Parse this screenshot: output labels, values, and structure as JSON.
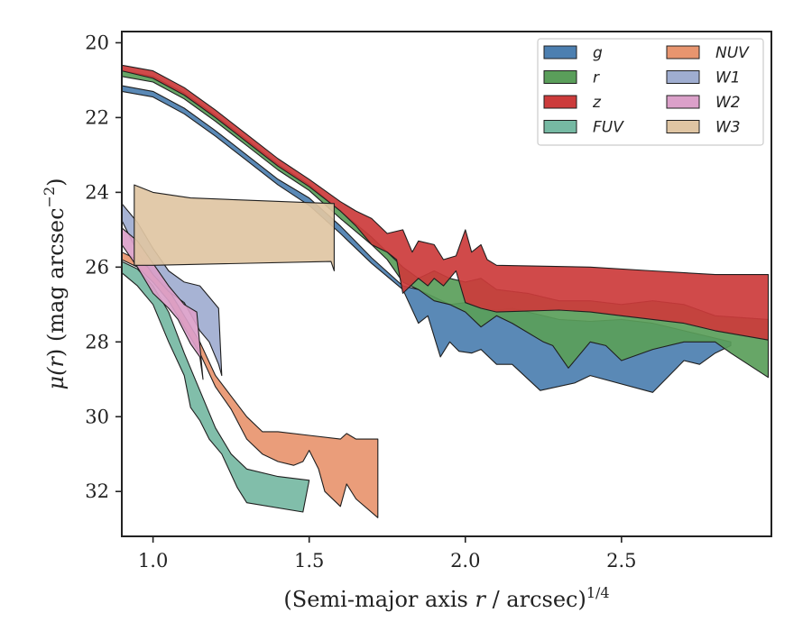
{
  "chart_data": {
    "type": "area",
    "xlabel": "(Semi-major axis r / arcsec)^1/4",
    "xlabel_parts": {
      "pre": "(Semi-major axis ",
      "italic": "r",
      "mid": " / arcsec)",
      "sup": "1/4"
    },
    "ylabel": "μ(r) (mag arcsec^−2)",
    "ylabel_parts": {
      "mu": "μ(",
      "r": "r",
      "close": ")",
      "rest": " (mag arcsec",
      "sup": "−2",
      "end": ")"
    },
    "xlim": [
      0.9,
      2.98
    ],
    "ylim": [
      33.2,
      19.7
    ],
    "y_inverted": true,
    "xticks": [
      1.0,
      1.5,
      2.0,
      2.5
    ],
    "xtick_labels": [
      "1.0",
      "1.5",
      "2.0",
      "2.5"
    ],
    "yticks": [
      20,
      22,
      24,
      26,
      28,
      30,
      32
    ],
    "ytick_labels": [
      "20",
      "22",
      "24",
      "26",
      "28",
      "30",
      "32"
    ],
    "grid": false,
    "legend_position": "top-right",
    "series": [
      {
        "name": "g",
        "color": "#4c7fb0",
        "upper": [
          [
            0.9,
            21.15
          ],
          [
            1.0,
            21.3
          ],
          [
            1.1,
            21.75
          ],
          [
            1.2,
            22.35
          ],
          [
            1.3,
            23.0
          ],
          [
            1.4,
            23.65
          ],
          [
            1.5,
            24.15
          ],
          [
            1.6,
            24.9
          ],
          [
            1.7,
            25.75
          ],
          [
            1.8,
            26.5
          ],
          [
            1.85,
            26.6
          ],
          [
            1.9,
            26.8
          ],
          [
            1.95,
            27.0
          ],
          [
            2.0,
            26.95
          ],
          [
            2.05,
            27.1
          ],
          [
            2.1,
            27.15
          ],
          [
            2.15,
            27.1
          ],
          [
            2.2,
            27.2
          ],
          [
            2.3,
            27.4
          ],
          [
            2.4,
            27.45
          ],
          [
            2.5,
            27.4
          ],
          [
            2.6,
            27.5
          ],
          [
            2.7,
            27.7
          ],
          [
            2.8,
            27.9
          ],
          [
            2.85,
            28.0
          ]
        ],
        "lower": [
          [
            2.85,
            28.1
          ],
          [
            2.8,
            28.3
          ],
          [
            2.75,
            28.6
          ],
          [
            2.7,
            28.5
          ],
          [
            2.6,
            29.35
          ],
          [
            2.4,
            28.9
          ],
          [
            2.35,
            29.1
          ],
          [
            2.24,
            29.3
          ],
          [
            2.15,
            28.6
          ],
          [
            2.1,
            28.6
          ],
          [
            2.05,
            28.2
          ],
          [
            2.02,
            28.3
          ],
          [
            1.98,
            28.25
          ],
          [
            1.95,
            28.0
          ],
          [
            1.92,
            28.4
          ],
          [
            1.88,
            27.3
          ],
          [
            1.85,
            27.5
          ],
          [
            1.8,
            26.6
          ],
          [
            1.7,
            25.9
          ],
          [
            1.6,
            25.1
          ],
          [
            1.5,
            24.35
          ],
          [
            1.4,
            23.8
          ],
          [
            1.3,
            23.15
          ],
          [
            1.2,
            22.5
          ],
          [
            1.1,
            21.9
          ],
          [
            1.0,
            21.45
          ],
          [
            0.9,
            21.3
          ]
        ]
      },
      {
        "name": "r",
        "color": "#5a9e5a",
        "upper": [
          [
            0.9,
            20.75
          ],
          [
            1.0,
            20.9
          ],
          [
            1.1,
            21.35
          ],
          [
            1.2,
            21.95
          ],
          [
            1.3,
            22.6
          ],
          [
            1.4,
            23.25
          ],
          [
            1.5,
            23.8
          ],
          [
            1.6,
            24.5
          ],
          [
            1.7,
            25.2
          ],
          [
            1.75,
            25.6
          ],
          [
            1.8,
            26.0
          ],
          [
            1.85,
            26.3
          ],
          [
            1.9,
            26.1
          ],
          [
            1.95,
            26.3
          ],
          [
            2.0,
            26.4
          ],
          [
            2.05,
            26.3
          ],
          [
            2.1,
            26.6
          ],
          [
            2.2,
            26.7
          ],
          [
            2.3,
            26.9
          ],
          [
            2.4,
            26.9
          ],
          [
            2.5,
            27.0
          ],
          [
            2.6,
            26.9
          ],
          [
            2.7,
            27.0
          ],
          [
            2.8,
            27.3
          ],
          [
            2.97,
            27.4
          ]
        ],
        "lower": [
          [
            2.97,
            28.95
          ],
          [
            2.85,
            28.3
          ],
          [
            2.8,
            28.0
          ],
          [
            2.7,
            28.0
          ],
          [
            2.6,
            28.2
          ],
          [
            2.5,
            28.5
          ],
          [
            2.45,
            28.1
          ],
          [
            2.4,
            28.0
          ],
          [
            2.33,
            28.7
          ],
          [
            2.28,
            28.1
          ],
          [
            2.25,
            28.0
          ],
          [
            2.15,
            27.5
          ],
          [
            2.1,
            27.3
          ],
          [
            2.05,
            27.6
          ],
          [
            2.0,
            27.2
          ],
          [
            1.95,
            27.0
          ],
          [
            1.9,
            26.9
          ],
          [
            1.85,
            26.6
          ],
          [
            1.8,
            26.4
          ],
          [
            1.75,
            25.8
          ],
          [
            1.7,
            25.4
          ],
          [
            1.6,
            24.7
          ],
          [
            1.5,
            23.95
          ],
          [
            1.4,
            23.4
          ],
          [
            1.3,
            22.75
          ],
          [
            1.2,
            22.1
          ],
          [
            1.1,
            21.5
          ],
          [
            1.0,
            21.05
          ],
          [
            0.9,
            20.9
          ]
        ]
      },
      {
        "name": "z",
        "color": "#cc3b3b",
        "upper": [
          [
            0.9,
            20.6
          ],
          [
            1.0,
            20.75
          ],
          [
            1.1,
            21.2
          ],
          [
            1.2,
            21.8
          ],
          [
            1.3,
            22.45
          ],
          [
            1.4,
            23.1
          ],
          [
            1.5,
            23.65
          ],
          [
            1.6,
            24.25
          ],
          [
            1.65,
            24.5
          ],
          [
            1.7,
            24.7
          ],
          [
            1.75,
            25.1
          ],
          [
            1.8,
            25.0
          ],
          [
            1.83,
            25.6
          ],
          [
            1.85,
            25.3
          ],
          [
            1.9,
            25.4
          ],
          [
            1.93,
            25.8
          ],
          [
            1.97,
            25.7
          ],
          [
            2.0,
            25.0
          ],
          [
            2.02,
            25.6
          ],
          [
            2.05,
            25.4
          ],
          [
            2.07,
            25.8
          ],
          [
            2.1,
            25.95
          ],
          [
            2.4,
            26.0
          ],
          [
            2.6,
            26.1
          ],
          [
            2.8,
            26.2
          ],
          [
            2.97,
            26.2
          ]
        ],
        "lower": [
          [
            2.97,
            27.95
          ],
          [
            2.8,
            27.7
          ],
          [
            2.7,
            27.5
          ],
          [
            2.6,
            27.4
          ],
          [
            2.5,
            27.3
          ],
          [
            2.4,
            27.2
          ],
          [
            2.3,
            27.15
          ],
          [
            2.1,
            27.2
          ],
          [
            2.05,
            27.1
          ],
          [
            2.0,
            26.95
          ],
          [
            1.97,
            26.1
          ],
          [
            1.93,
            26.5
          ],
          [
            1.9,
            26.3
          ],
          [
            1.88,
            26.5
          ],
          [
            1.85,
            26.3
          ],
          [
            1.8,
            26.7
          ],
          [
            1.78,
            25.8
          ],
          [
            1.75,
            25.6
          ],
          [
            1.7,
            25.4
          ],
          [
            1.65,
            24.9
          ],
          [
            1.6,
            24.5
          ],
          [
            1.5,
            23.85
          ],
          [
            1.4,
            23.3
          ],
          [
            1.3,
            22.65
          ],
          [
            1.2,
            22.0
          ],
          [
            1.1,
            21.4
          ],
          [
            1.0,
            20.95
          ],
          [
            0.9,
            20.75
          ]
        ]
      },
      {
        "name": "FUV",
        "color": "#76b9a3",
        "upper": [
          [
            0.9,
            25.85
          ],
          [
            0.95,
            26.05
          ],
          [
            1.0,
            26.5
          ],
          [
            1.05,
            27.2
          ],
          [
            1.1,
            28.3
          ],
          [
            1.15,
            29.3
          ],
          [
            1.2,
            30.3
          ],
          [
            1.25,
            31.0
          ],
          [
            1.3,
            31.4
          ],
          [
            1.4,
            31.6
          ],
          [
            1.5,
            31.7
          ]
        ],
        "lower": [
          [
            1.48,
            32.55
          ],
          [
            1.3,
            32.3
          ],
          [
            1.27,
            31.9
          ],
          [
            1.22,
            31.0
          ],
          [
            1.18,
            30.6
          ],
          [
            1.15,
            30.1
          ],
          [
            1.12,
            29.75
          ],
          [
            1.1,
            28.9
          ],
          [
            1.05,
            28.0
          ],
          [
            1.0,
            27.0
          ],
          [
            0.95,
            26.5
          ],
          [
            0.9,
            26.15
          ]
        ]
      },
      {
        "name": "NUV",
        "color": "#e8956f",
        "upper": [
          [
            0.9,
            25.6
          ],
          [
            0.95,
            25.8
          ],
          [
            1.0,
            26.1
          ],
          [
            1.05,
            26.6
          ],
          [
            1.1,
            27.3
          ],
          [
            1.15,
            28.0
          ],
          [
            1.2,
            28.9
          ],
          [
            1.3,
            30.0
          ],
          [
            1.35,
            30.4
          ],
          [
            1.4,
            30.4
          ],
          [
            1.5,
            30.5
          ],
          [
            1.6,
            30.6
          ],
          [
            1.62,
            30.45
          ],
          [
            1.65,
            30.6
          ],
          [
            1.72,
            30.6
          ]
        ],
        "lower": [
          [
            1.72,
            32.7
          ],
          [
            1.65,
            32.2
          ],
          [
            1.62,
            31.8
          ],
          [
            1.6,
            32.4
          ],
          [
            1.55,
            32.0
          ],
          [
            1.53,
            31.4
          ],
          [
            1.5,
            30.9
          ],
          [
            1.48,
            31.2
          ],
          [
            1.45,
            31.3
          ],
          [
            1.4,
            31.2
          ],
          [
            1.35,
            31.0
          ],
          [
            1.3,
            30.6
          ],
          [
            1.25,
            29.8
          ],
          [
            1.2,
            29.2
          ],
          [
            1.15,
            28.3
          ],
          [
            1.1,
            27.6
          ],
          [
            1.05,
            26.9
          ],
          [
            1.0,
            26.4
          ],
          [
            0.95,
            26.0
          ],
          [
            0.9,
            25.8
          ]
        ]
      },
      {
        "name": "W1",
        "color": "#9fadd0",
        "upper": [
          [
            0.9,
            24.3
          ],
          [
            0.95,
            24.8
          ],
          [
            1.0,
            25.5
          ],
          [
            1.05,
            26.1
          ],
          [
            1.1,
            26.4
          ],
          [
            1.15,
            26.5
          ],
          [
            1.18,
            26.8
          ],
          [
            1.21,
            27.1
          ],
          [
            1.22,
            28.9
          ]
        ],
        "lower": [
          [
            1.21,
            28.6
          ],
          [
            1.18,
            28.0
          ],
          [
            1.15,
            27.7
          ],
          [
            1.1,
            26.95
          ],
          [
            1.05,
            26.65
          ],
          [
            1.0,
            26.2
          ],
          [
            0.95,
            25.6
          ],
          [
            0.9,
            24.75
          ]
        ]
      },
      {
        "name": "W2",
        "color": "#dba0c9",
        "upper": [
          [
            0.9,
            24.95
          ],
          [
            0.95,
            25.3
          ],
          [
            1.0,
            25.9
          ],
          [
            1.05,
            26.5
          ],
          [
            1.1,
            27.0
          ],
          [
            1.14,
            27.2
          ],
          [
            1.16,
            29.0
          ]
        ],
        "lower": [
          [
            1.15,
            28.4
          ],
          [
            1.12,
            28.05
          ],
          [
            1.08,
            27.4
          ],
          [
            1.05,
            27.1
          ],
          [
            1.0,
            26.7
          ],
          [
            0.95,
            26.0
          ],
          [
            0.9,
            25.4
          ]
        ]
      },
      {
        "name": "W3",
        "color": "#dfc5a3",
        "upper": [
          [
            0.94,
            23.8
          ],
          [
            1.0,
            24.0
          ],
          [
            1.12,
            24.15
          ],
          [
            1.58,
            24.3
          ]
        ],
        "lower": [
          [
            1.58,
            26.1
          ],
          [
            1.57,
            25.85
          ],
          [
            1.0,
            25.95
          ],
          [
            0.94,
            25.95
          ]
        ]
      }
    ]
  }
}
